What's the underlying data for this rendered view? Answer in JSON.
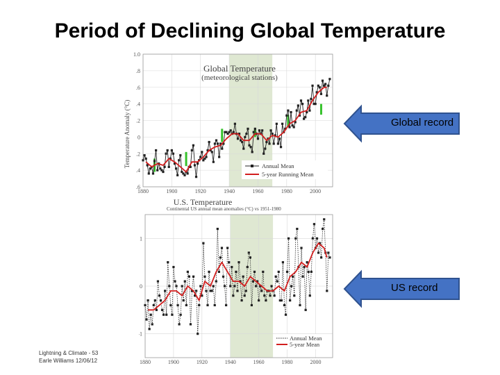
{
  "slide": {
    "title": "Period of Declining Global Temperature",
    "footer_line1": "Lightning & Climate - 53",
    "footer_line2": "Earle Williams 12/06/12"
  },
  "annotations": [
    {
      "label": "Global record",
      "color": "#4472c4"
    },
    {
      "label": "US record",
      "color": "#4472c4"
    }
  ],
  "chart_data": [
    {
      "type": "line",
      "title": "Global Temperature",
      "subtitle": "(meteorological stations)",
      "ylabel": "Temperature Anomaly (°C)",
      "xlim": [
        1880,
        2012
      ],
      "ylim": [
        -0.6,
        1.0
      ],
      "yticks": [
        -0.6,
        -0.4,
        -0.2,
        0.0,
        0.2,
        0.4,
        0.6,
        0.8,
        1.0
      ],
      "ytick_labels": [
        ".6",
        ".4",
        ".2",
        "0",
        ".2",
        ".4",
        ".6",
        ".8",
        "1.0"
      ],
      "xticks": [
        1880,
        1900,
        1920,
        1940,
        1960,
        1980,
        2000
      ],
      "shaded_period": [
        1940,
        1970
      ],
      "shade_color": "#dfe8d2",
      "legend": [
        "Annual Mean",
        "5-year Running Mean"
      ],
      "legend_position": "bottom-right",
      "green_error_bars": [
        [
          1888,
          -0.42,
          -0.26
        ],
        [
          1910,
          -0.35,
          -0.18
        ],
        [
          1935,
          -0.06,
          0.1
        ],
        [
          1958,
          0.0,
          0.1
        ],
        [
          1981,
          0.13,
          0.27
        ],
        [
          2004,
          0.27,
          0.4
        ]
      ],
      "series": [
        {
          "name": "Annual Mean",
          "color": "#222222",
          "x": [
            1880,
            1881,
            1882,
            1883,
            1884,
            1885,
            1886,
            1887,
            1888,
            1889,
            1890,
            1891,
            1892,
            1893,
            1894,
            1895,
            1896,
            1897,
            1898,
            1899,
            1900,
            1901,
            1902,
            1903,
            1904,
            1905,
            1906,
            1907,
            1908,
            1909,
            1910,
            1911,
            1912,
            1913,
            1914,
            1915,
            1916,
            1917,
            1918,
            1919,
            1920,
            1921,
            1922,
            1923,
            1924,
            1925,
            1926,
            1927,
            1928,
            1929,
            1930,
            1931,
            1932,
            1933,
            1934,
            1935,
            1936,
            1937,
            1938,
            1939,
            1940,
            1941,
            1942,
            1943,
            1944,
            1945,
            1946,
            1947,
            1948,
            1949,
            1950,
            1951,
            1952,
            1953,
            1954,
            1955,
            1956,
            1957,
            1958,
            1959,
            1960,
            1961,
            1962,
            1963,
            1964,
            1965,
            1966,
            1967,
            1968,
            1969,
            1970,
            1971,
            1972,
            1973,
            1974,
            1975,
            1976,
            1977,
            1978,
            1979,
            1980,
            1981,
            1982,
            1983,
            1984,
            1985,
            1986,
            1987,
            1988,
            1989,
            1990,
            1991,
            1992,
            1993,
            1994,
            1995,
            1996,
            1997,
            1998,
            1999,
            2000,
            2001,
            2002,
            2003,
            2004,
            2005,
            2006,
            2007,
            2008,
            2009,
            2010
          ],
          "values": [
            -0.28,
            -0.22,
            -0.26,
            -0.34,
            -0.44,
            -0.38,
            -0.36,
            -0.44,
            -0.29,
            -0.16,
            -0.4,
            -0.32,
            -0.38,
            -0.4,
            -0.42,
            -0.36,
            -0.2,
            -0.16,
            -0.36,
            -0.26,
            -0.16,
            -0.2,
            -0.32,
            -0.38,
            -0.46,
            -0.28,
            -0.22,
            -0.42,
            -0.44,
            -0.46,
            -0.42,
            -0.44,
            -0.36,
            -0.36,
            -0.16,
            -0.1,
            -0.34,
            -0.48,
            -0.32,
            -0.28,
            -0.24,
            -0.18,
            -0.28,
            -0.26,
            -0.24,
            -0.16,
            -0.06,
            -0.16,
            -0.18,
            -0.3,
            -0.08,
            -0.04,
            -0.08,
            -0.24,
            -0.08,
            -0.14,
            -0.08,
            0.06,
            0.06,
            0.04,
            0.06,
            0.08,
            0.04,
            0.06,
            0.16,
            0.04,
            -0.02,
            0.04,
            -0.04,
            -0.06,
            -0.14,
            0.0,
            0.04,
            0.1,
            -0.1,
            -0.12,
            -0.18,
            0.06,
            0.1,
            0.04,
            -0.02,
            0.08,
            0.04,
            0.08,
            -0.2,
            -0.14,
            -0.06,
            -0.02,
            -0.08,
            0.08,
            0.04,
            -0.08,
            0.02,
            0.16,
            -0.08,
            -0.02,
            -0.12,
            0.16,
            0.06,
            0.1,
            0.26,
            0.32,
            0.12,
            0.3,
            0.14,
            0.12,
            0.18,
            0.32,
            0.38,
            0.26,
            0.44,
            0.4,
            0.22,
            0.24,
            0.3,
            0.44,
            0.32,
            0.46,
            0.62,
            0.4,
            0.4,
            0.54,
            0.62,
            0.6,
            0.52,
            0.68,
            0.62,
            0.64,
            0.5,
            0.62,
            0.7
          ]
        },
        {
          "name": "5-year Running Mean",
          "color": "#d21e1e",
          "x": [
            1882,
            1886,
            1890,
            1894,
            1898,
            1902,
            1906,
            1910,
            1914,
            1918,
            1922,
            1926,
            1930,
            1934,
            1938,
            1942,
            1946,
            1950,
            1954,
            1958,
            1962,
            1966,
            1970,
            1974,
            1978,
            1982,
            1986,
            1990,
            1994,
            1998,
            2002,
            2006,
            2008
          ],
          "values": [
            -0.3,
            -0.36,
            -0.32,
            -0.34,
            -0.26,
            -0.3,
            -0.36,
            -0.42,
            -0.3,
            -0.3,
            -0.24,
            -0.16,
            -0.12,
            -0.1,
            -0.02,
            0.04,
            0.04,
            -0.04,
            -0.04,
            0.04,
            0.04,
            -0.04,
            0.02,
            0.0,
            0.06,
            0.16,
            0.2,
            0.3,
            0.32,
            0.44,
            0.54,
            0.6,
            0.6
          ]
        }
      ]
    },
    {
      "type": "line",
      "title": "U.S. Temperature",
      "subtitle": "Continental US annual mean anomalies (°C) vs 1951-1980",
      "xlim": [
        1880,
        2012
      ],
      "ylim": [
        -1.5,
        1.5
      ],
      "yticks": [
        -1,
        0,
        1
      ],
      "ytick_labels": [
        "-1",
        "0",
        "1"
      ],
      "xticks": [
        1880,
        1900,
        1920,
        1940,
        1960,
        1980,
        2000
      ],
      "shaded_period": [
        1940,
        1970
      ],
      "shade_color": "#dfe8d2",
      "legend": [
        "Annual Mean",
        "5-year Mean"
      ],
      "legend_position": "bottom-right",
      "series": [
        {
          "name": "Annual Mean",
          "color": "#222222",
          "x": [
            1880,
            1881,
            1882,
            1883,
            1884,
            1885,
            1886,
            1887,
            1888,
            1889,
            1890,
            1891,
            1892,
            1893,
            1894,
            1895,
            1896,
            1897,
            1898,
            1899,
            1900,
            1901,
            1902,
            1903,
            1904,
            1905,
            1906,
            1907,
            1908,
            1909,
            1910,
            1911,
            1912,
            1913,
            1914,
            1915,
            1916,
            1917,
            1918,
            1919,
            1920,
            1921,
            1922,
            1923,
            1924,
            1925,
            1926,
            1927,
            1928,
            1929,
            1930,
            1931,
            1932,
            1933,
            1934,
            1935,
            1936,
            1937,
            1938,
            1939,
            1940,
            1941,
            1942,
            1943,
            1944,
            1945,
            1946,
            1947,
            1948,
            1949,
            1950,
            1951,
            1952,
            1953,
            1954,
            1955,
            1956,
            1957,
            1958,
            1959,
            1960,
            1961,
            1962,
            1963,
            1964,
            1965,
            1966,
            1967,
            1968,
            1969,
            1970,
            1971,
            1972,
            1973,
            1974,
            1975,
            1976,
            1977,
            1978,
            1979,
            1980,
            1981,
            1982,
            1983,
            1984,
            1985,
            1986,
            1987,
            1988,
            1989,
            1990,
            1991,
            1992,
            1993,
            1994,
            1995,
            1996,
            1997,
            1998,
            1999,
            2000,
            2001,
            2002,
            2003,
            2004,
            2005,
            2006,
            2007,
            2008,
            2009,
            2010
          ],
          "values": [
            -0.4,
            -0.7,
            -0.3,
            -0.9,
            -0.6,
            -0.8,
            -0.4,
            -0.3,
            -0.5,
            0.1,
            -0.2,
            -0.3,
            -0.5,
            -0.6,
            -0.1,
            -0.6,
            0.5,
            0.0,
            -0.4,
            -0.6,
            0.4,
            0.1,
            0.0,
            -0.4,
            -0.8,
            -0.6,
            0.0,
            -0.3,
            0.1,
            -0.4,
            0.3,
            0.2,
            -0.8,
            -0.1,
            0.2,
            -0.2,
            -0.1,
            -1.0,
            -0.4,
            0.0,
            -0.2,
            0.9,
            0.2,
            -0.1,
            -0.4,
            0.3,
            -0.1,
            -0.1,
            0.0,
            -0.4,
            0.1,
            1.2,
            0.3,
            0.6,
            0.8,
            0.2,
            0.0,
            -0.4,
            0.8,
            0.5,
            0.0,
            0.4,
            -0.2,
            0.0,
            0.3,
            -0.1,
            0.5,
            0.1,
            -0.3,
            0.2,
            -0.2,
            -0.1,
            0.4,
            0.7,
            0.6,
            -0.4,
            0.1,
            0.3,
            0.0,
            0.1,
            -0.3,
            0.0,
            -0.1,
            0.3,
            -0.2,
            -0.3,
            -0.1,
            -0.1,
            -0.2,
            0.0,
            -0.1,
            -0.2,
            0.2,
            0.1,
            0.3,
            -0.3,
            -0.3,
            0.5,
            -0.4,
            -0.6,
            0.3,
            1.0,
            -0.3,
            0.0,
            0.2,
            -0.2,
            1.0,
            1.2,
            0.4,
            -0.4,
            0.8,
            0.2,
            0.4,
            -0.5,
            0.5,
            0.3,
            -0.2,
            0.3,
            1.0,
            1.3,
            0.8,
            1.0,
            0.7,
            0.9,
            0.6,
            1.2,
            1.4,
            0.7,
            -0.1,
            0.7,
            0.6
          ]
        },
        {
          "name": "5-year Mean",
          "color": "#d21e1e",
          "x": [
            1882,
            1886,
            1890,
            1894,
            1898,
            1902,
            1906,
            1910,
            1914,
            1918,
            1922,
            1926,
            1930,
            1934,
            1938,
            1942,
            1946,
            1950,
            1954,
            1958,
            1962,
            1966,
            1970,
            1974,
            1978,
            1982,
            1986,
            1990,
            1994,
            1998,
            2002,
            2006,
            2008
          ],
          "values": [
            -0.5,
            -0.5,
            -0.4,
            -0.3,
            -0.1,
            -0.1,
            -0.2,
            0.0,
            -0.1,
            -0.3,
            0.1,
            0.0,
            0.3,
            0.5,
            0.3,
            0.1,
            0.1,
            0.0,
            0.2,
            0.1,
            0.0,
            -0.1,
            -0.1,
            0.0,
            -0.1,
            0.2,
            0.3,
            0.5,
            0.4,
            0.7,
            0.9,
            0.8,
            0.6
          ]
        }
      ]
    }
  ]
}
